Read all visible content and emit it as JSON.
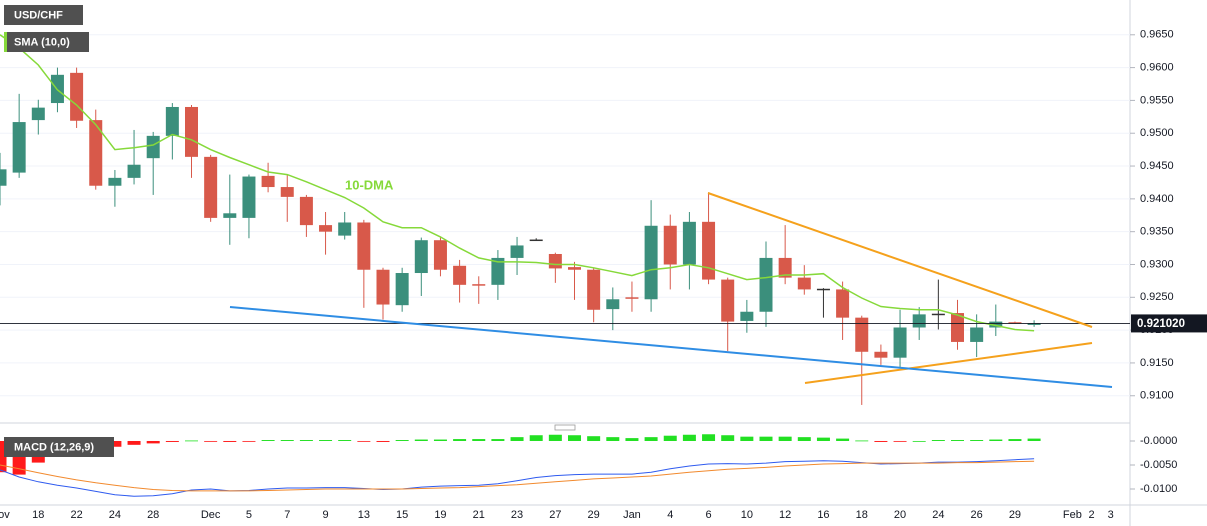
{
  "chart_data": [
    {
      "type": "candlestick",
      "title": "USD/CHF",
      "categories": [
        "Nov",
        null,
        "18",
        null,
        "22",
        null,
        "24",
        null,
        "28",
        null,
        null,
        "Dec",
        null,
        "5",
        null,
        "7",
        null,
        "9",
        null,
        "13",
        null,
        "15",
        null,
        "19",
        null,
        "21",
        null,
        "23",
        null,
        "27",
        null,
        "29",
        null,
        "Jan",
        null,
        "4",
        null,
        "6",
        null,
        "10",
        null,
        "12",
        null,
        "16",
        null,
        "18",
        null,
        "20",
        null,
        "24",
        null,
        "26",
        null,
        "29",
        null,
        null,
        "Feb",
        "2",
        "3"
      ],
      "open": [
        0.942,
        0.944,
        0.952,
        0.9546,
        0.9592,
        0.952,
        0.942,
        0.9432,
        0.9462,
        0.9496,
        0.954,
        0.9464,
        0.9371,
        0.9371,
        0.9435,
        0.9418,
        0.9403,
        0.936,
        0.9344,
        0.9364,
        0.9292,
        0.9238,
        0.9287,
        0.9337,
        0.9298,
        0.927,
        0.9269,
        0.931,
        0.9338,
        0.9316,
        0.9296,
        0.9292,
        0.9232,
        0.925,
        0.9247,
        0.9359,
        0.93,
        0.9365,
        0.9277,
        0.9214,
        0.9228,
        0.931,
        0.928,
        0.9263,
        0.9262,
        0.9219,
        0.9167,
        0.9158,
        0.9204,
        0.9225,
        0.9226,
        0.9182,
        0.9204,
        0.9212,
        0.921,
        null,
        null,
        null,
        null
      ],
      "high": [
        0.947,
        0.956,
        0.9551,
        0.96,
        0.96,
        0.9536,
        0.9444,
        0.9505,
        0.9502,
        0.9546,
        0.9543,
        0.9467,
        0.9437,
        0.9437,
        0.9455,
        0.9437,
        0.9406,
        0.938,
        0.938,
        0.9368,
        0.9295,
        0.9295,
        0.9341,
        0.9342,
        0.9307,
        0.9282,
        0.9322,
        0.9342,
        0.934,
        0.9318,
        0.9304,
        0.9295,
        0.9265,
        0.9274,
        0.9398,
        0.9376,
        0.938,
        0.941,
        0.928,
        0.9246,
        0.9335,
        0.936,
        0.9299,
        0.9264,
        0.9274,
        0.9222,
        0.9178,
        0.9231,
        0.9235,
        0.9277,
        0.9246,
        0.9224,
        0.9239,
        0.9213,
        0.9215,
        null,
        null,
        null,
        null
      ],
      "low": [
        0.939,
        0.9432,
        0.9498,
        0.9532,
        0.9508,
        0.9414,
        0.9388,
        0.9422,
        0.9406,
        0.946,
        0.9432,
        0.9365,
        0.933,
        0.934,
        0.941,
        0.9365,
        0.9342,
        0.9315,
        0.9338,
        0.9234,
        0.9216,
        0.9228,
        0.9252,
        0.9282,
        0.9242,
        0.924,
        0.9246,
        0.9284,
        0.9336,
        0.9272,
        0.9246,
        0.9212,
        0.92,
        0.9228,
        0.9228,
        0.9262,
        0.9262,
        0.927,
        0.9168,
        0.9196,
        0.9205,
        0.927,
        0.9254,
        0.9219,
        0.9185,
        0.9086,
        0.9147,
        0.9143,
        0.9185,
        0.9201,
        0.917,
        0.9159,
        0.9191,
        0.921,
        0.9205,
        null,
        null,
        null,
        null
      ],
      "close": [
        0.9445,
        0.9517,
        0.9539,
        0.9589,
        0.9519,
        0.942,
        0.9432,
        0.9452,
        0.9496,
        0.954,
        0.9464,
        0.9371,
        0.9378,
        0.9434,
        0.9418,
        0.9403,
        0.936,
        0.935,
        0.9364,
        0.9292,
        0.9239,
        0.9287,
        0.9337,
        0.9292,
        0.9269,
        0.9268,
        0.931,
        0.9329,
        0.9338,
        0.9294,
        0.9292,
        0.9231,
        0.9247,
        0.9248,
        0.9359,
        0.93,
        0.9365,
        0.9277,
        0.9213,
        0.9228,
        0.931,
        0.928,
        0.9262,
        0.9263,
        0.9219,
        0.9167,
        0.9158,
        0.9204,
        0.9224,
        0.9225,
        0.9182,
        0.9204,
        0.9213,
        0.921,
        0.92102,
        null,
        null,
        null,
        null
      ],
      "up_color": "#3b8f7c",
      "down_color": "#d8594a",
      "flat_color": "#333333",
      "series": [
        {
          "name": "SMA (10,0)",
          "color": "#86d93a",
          "values": [
            0.965,
            0.963,
            0.9604,
            0.9566,
            0.9543,
            0.9513,
            0.9475,
            0.9478,
            0.9482,
            0.9498,
            0.949,
            0.9475,
            0.9463,
            0.9452,
            0.9441,
            0.9437,
            0.9426,
            0.9414,
            0.9402,
            0.9386,
            0.9365,
            0.9356,
            0.9356,
            0.9342,
            0.9325,
            0.931,
            0.9304,
            0.9304,
            0.9303,
            0.93,
            0.93,
            0.9295,
            0.9289,
            0.9283,
            0.9292,
            0.9295,
            0.93,
            0.9295,
            0.9286,
            0.9277,
            0.928,
            0.9284,
            0.9284,
            0.9286,
            0.9265,
            0.9249,
            0.9236,
            0.9233,
            0.9231,
            0.9231,
            0.9223,
            0.9213,
            0.9207,
            0.9201,
            0.9199,
            null,
            null,
            null,
            null
          ]
        }
      ],
      "annotation": "10-DMA",
      "last_price": {
        "value": 0.92102,
        "label": "0.921020"
      },
      "ylim": [
        0.906,
        0.9703
      ],
      "yticks": [
        {
          "value": 0.91,
          "label": "0.9100"
        },
        {
          "value": 0.915,
          "label": "0.9150"
        },
        {
          "value": 0.92,
          "label": "0.9200"
        },
        {
          "value": 0.925,
          "label": "0.9250"
        },
        {
          "value": 0.93,
          "label": "0.9300"
        },
        {
          "value": 0.935,
          "label": "0.9350"
        },
        {
          "value": 0.94,
          "label": "0.9400"
        },
        {
          "value": 0.945,
          "label": "0.9450"
        },
        {
          "value": 0.95,
          "label": "0.9500"
        },
        {
          "value": 0.955,
          "label": "0.9550"
        },
        {
          "value": 0.96,
          "label": "0.9600"
        },
        {
          "value": 0.965,
          "label": "0.9650"
        }
      ],
      "grid": true
    },
    {
      "type": "macd",
      "title": "MACD (12,26,9)",
      "histogram": {
        "up_color": "#22e022",
        "down_color": "#ff1a1a",
        "values": [
          -0.0065,
          -0.007,
          -0.0045,
          -0.003,
          -0.002,
          -0.0015,
          -0.0012,
          -0.0008,
          -0.0005,
          -0.0002,
          0.0001,
          -0.0001,
          -0.0002,
          -0.0001,
          0.0002,
          0.0002,
          0.0002,
          0.0002,
          0.0002,
          -0.0001,
          -0.0002,
          0.0002,
          0.0003,
          0.0003,
          0.0004,
          0.0004,
          0.0004,
          0.0008,
          0.0012,
          0.0013,
          0.0012,
          0.001,
          0.0008,
          0.0006,
          0.0008,
          0.0011,
          0.0013,
          0.0014,
          0.0012,
          0.0009,
          0.0009,
          0.0009,
          0.0008,
          0.0007,
          0.0005,
          0.0001,
          -0.0002,
          -0.0001,
          0.0,
          0.0002,
          0.0002,
          0.0002,
          0.0003,
          0.0004,
          0.0005,
          null,
          null,
          null,
          null
        ]
      },
      "series": [
        {
          "color": "#2f5bef",
          "values": [
            -0.006,
            -0.0075,
            -0.0085,
            -0.0092,
            -0.0098,
            -0.0105,
            -0.0112,
            -0.0115,
            -0.0114,
            -0.011,
            -0.0102,
            -0.01,
            -0.0104,
            -0.0103,
            -0.01,
            -0.0098,
            -0.0098,
            -0.0097,
            -0.0097,
            -0.0099,
            -0.0101,
            -0.01,
            -0.0096,
            -0.0094,
            -0.0093,
            -0.0092,
            -0.0089,
            -0.0083,
            -0.0076,
            -0.0072,
            -0.007,
            -0.0069,
            -0.0069,
            -0.0069,
            -0.0065,
            -0.0058,
            -0.0052,
            -0.0048,
            -0.0047,
            -0.0048,
            -0.0046,
            -0.0043,
            -0.0042,
            -0.0041,
            -0.0042,
            -0.0045,
            -0.0048,
            -0.0047,
            -0.0046,
            -0.0044,
            -0.0044,
            -0.0043,
            -0.0041,
            -0.0039,
            -0.0037,
            null,
            null,
            null,
            null
          ]
        },
        {
          "color": "#f28a2e",
          "values": [
            -0.005,
            -0.0058,
            -0.0066,
            -0.0074,
            -0.0081,
            -0.0087,
            -0.0092,
            -0.0097,
            -0.0101,
            -0.0103,
            -0.0104,
            -0.0104,
            -0.0104,
            -0.0104,
            -0.0103,
            -0.0102,
            -0.0101,
            -0.01,
            -0.01,
            -0.01,
            -0.01,
            -0.01,
            -0.0099,
            -0.0098,
            -0.0097,
            -0.0095,
            -0.0093,
            -0.0091,
            -0.0088,
            -0.0085,
            -0.0082,
            -0.0079,
            -0.0077,
            -0.0075,
            -0.0073,
            -0.0069,
            -0.0065,
            -0.0062,
            -0.0059,
            -0.0057,
            -0.0055,
            -0.0052,
            -0.005,
            -0.0048,
            -0.0047,
            -0.0046,
            -0.0046,
            -0.0046,
            -0.0046,
            -0.0046,
            -0.0045,
            -0.0045,
            -0.0044,
            -0.0043,
            -0.0042,
            null,
            null,
            null,
            null
          ]
        }
      ],
      "ylim": [
        -0.01333,
        0.00333
      ],
      "yticks": [
        {
          "value": 0.0,
          "label": "-0.0000"
        },
        {
          "value": -0.005,
          "label": "-0.0050"
        },
        {
          "value": -0.01,
          "label": "-0.0100"
        }
      ]
    }
  ]
}
